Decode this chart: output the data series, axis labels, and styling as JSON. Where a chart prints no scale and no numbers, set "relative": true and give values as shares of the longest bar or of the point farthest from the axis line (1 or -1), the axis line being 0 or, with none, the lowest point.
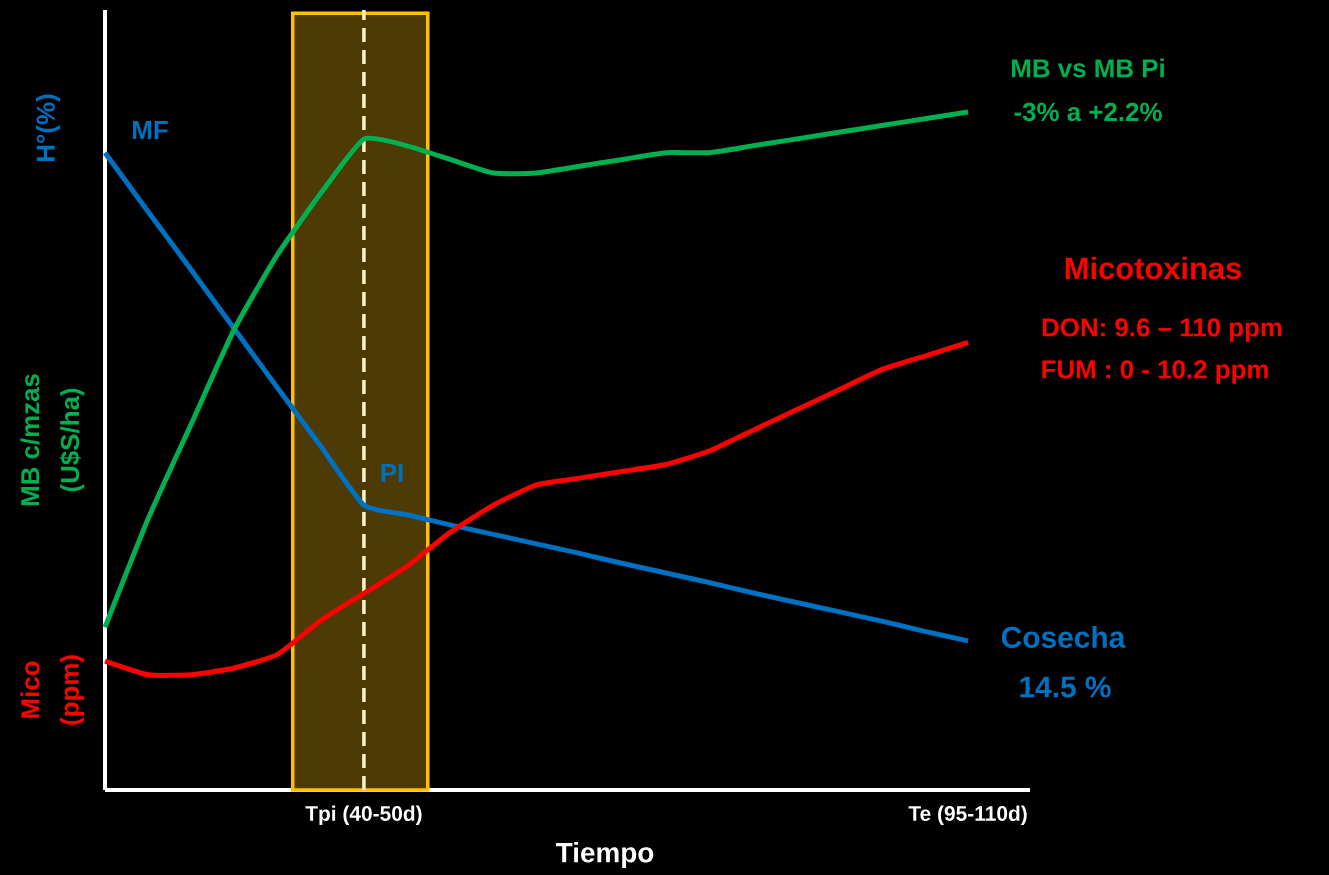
{
  "chart_data": {
    "type": "line",
    "relative": true,
    "xlabel": "Tiempo",
    "ylabel": "H°(%)",
    "categories": [
      null,
      null,
      null,
      null,
      null,
      null,
      "Tpi (40-50d)",
      null,
      null,
      null,
      null,
      null,
      null,
      null,
      null,
      null,
      null,
      null,
      null,
      null,
      "Te (95-110d)"
    ],
    "series": [
      {
        "color": "#0070c0",
        "values": [
          0.94,
          0.853,
          0.767,
          0.68,
          0.593,
          0.507,
          0.42,
          0.406,
          0.391,
          0.377,
          0.363,
          0.349,
          0.334,
          0.32,
          0.306,
          0.291,
          0.277,
          0.263,
          0.249,
          0.234,
          0.22
        ]
      },
      {
        "color": "#00b050",
        "values": [
          0.24,
          0.4,
          0.54,
          0.68,
          0.79,
          0.88,
          0.96,
          0.95,
          0.93,
          0.91,
          0.91,
          0.92,
          0.93,
          0.94,
          0.94,
          0.95,
          0.96,
          0.97,
          0.98,
          0.99,
          1
        ]
      },
      {
        "color": "#ff0000",
        "values": [
          0.19,
          0.17,
          0.17,
          0.18,
          0.2,
          0.25,
          0.29,
          0.33,
          0.38,
          0.42,
          0.45,
          0.46,
          0.47,
          0.48,
          0.5,
          0.53,
          0.56,
          0.59,
          0.62,
          0.64,
          0.66
        ]
      }
    ],
    "ref_lines": [
      {
        "axis": "x",
        "value": "Tpi (40-50d)",
        "color": "#fff2cc",
        "line_style": "dashed"
      }
    ],
    "annotations": [
      "MF",
      "PI",
      "Cosecha",
      "14.5 %",
      "MB vs MB Pi",
      "-3%  a +2.2%",
      "Micotoxinas",
      "DON: 9.6 – 110 ppm",
      "FUM : 0 - 10.2 ppm",
      "MB c/mzas",
      "(U$S/ha)",
      "Mico",
      "(ppm)"
    ]
  }
}
